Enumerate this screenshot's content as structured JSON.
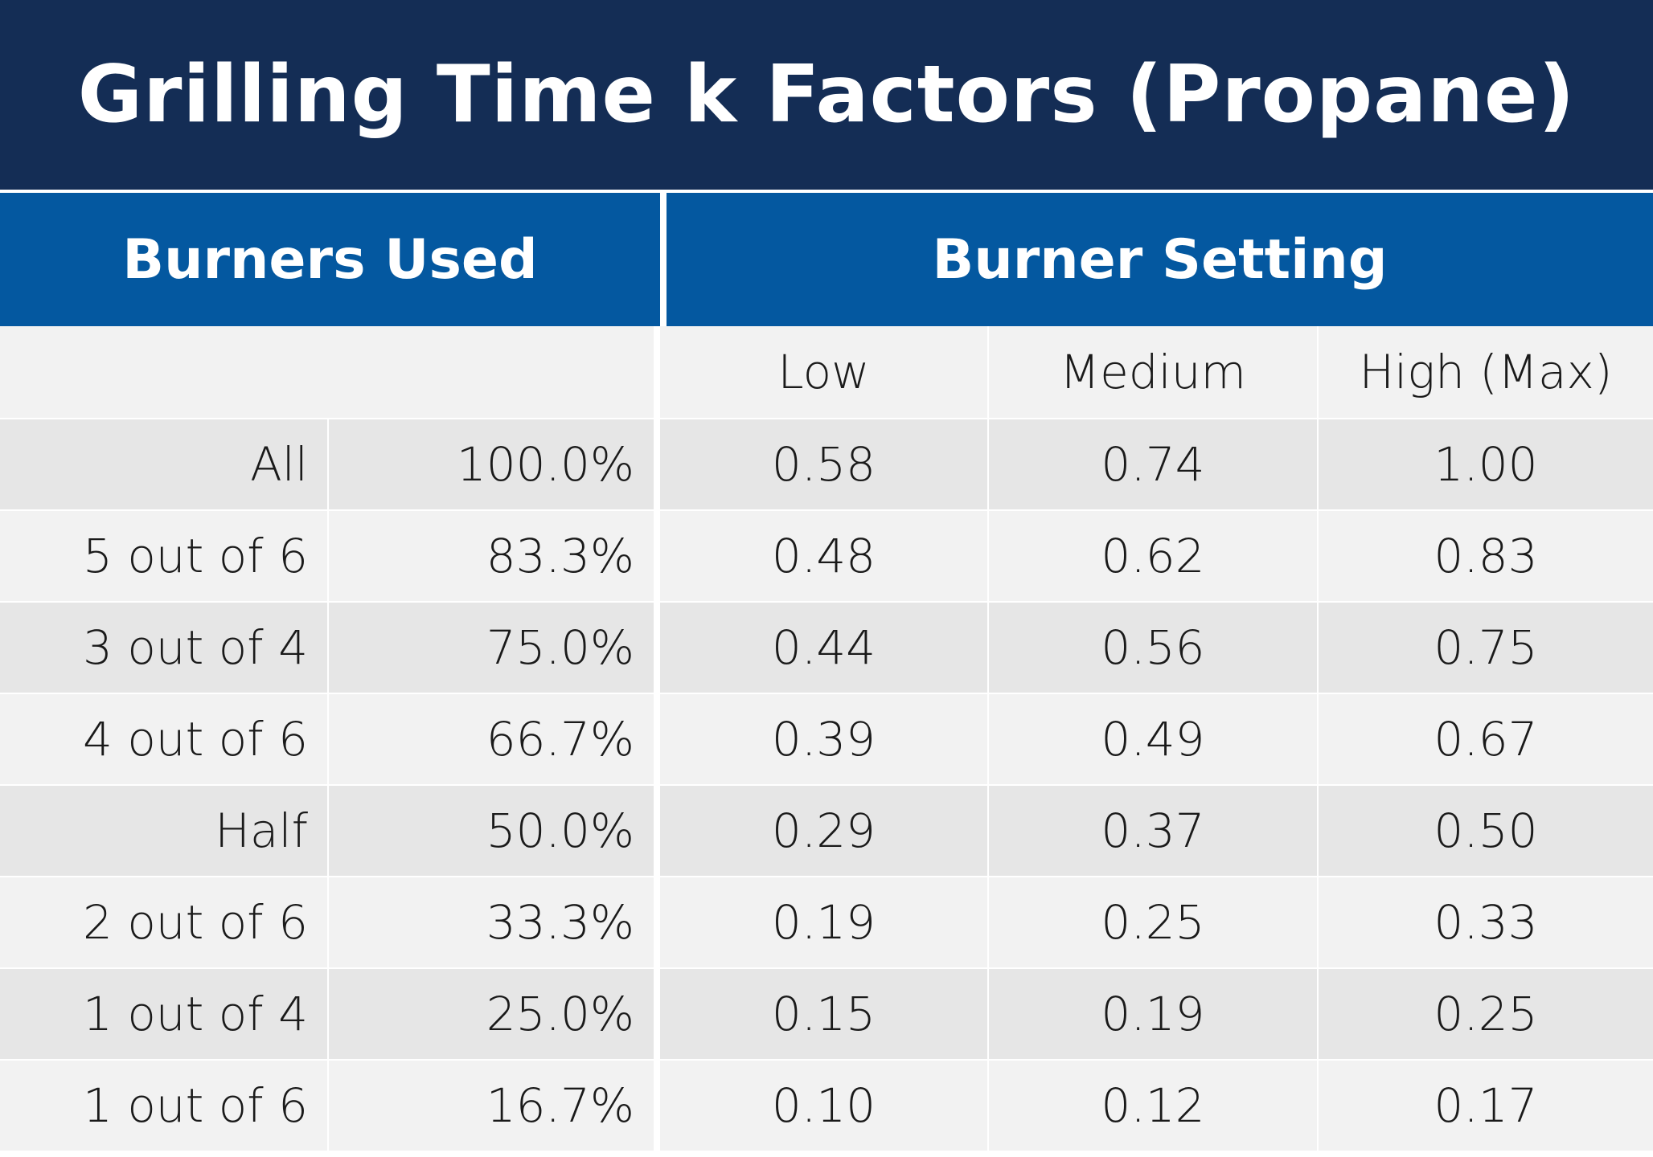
{
  "title": "Grilling Time k Factors (Propane)",
  "headers": {
    "left": "Burners Used",
    "right": "Burner Setting"
  },
  "settings": [
    "Low",
    "Medium",
    "High (Max)"
  ],
  "rows": [
    {
      "label": "All",
      "pct": "100.0%",
      "low": "0.58",
      "medium": "0.74",
      "high": "1.00"
    },
    {
      "label": "5 out of 6",
      "pct": "83.3%",
      "low": "0.48",
      "medium": "0.62",
      "high": "0.83"
    },
    {
      "label": "3 out of 4",
      "pct": "75.0%",
      "low": "0.44",
      "medium": "0.56",
      "high": "0.75"
    },
    {
      "label": "4 out of 6",
      "pct": "66.7%",
      "low": "0.39",
      "medium": "0.49",
      "high": "0.67"
    },
    {
      "label": "Half",
      "pct": "50.0%",
      "low": "0.29",
      "medium": "0.37",
      "high": "0.50"
    },
    {
      "label": "2 out of 6",
      "pct": "33.3%",
      "low": "0.19",
      "medium": "0.25",
      "high": "0.33"
    },
    {
      "label": "1 out of 4",
      "pct": "25.0%",
      "low": "0.15",
      "medium": "0.19",
      "high": "0.25"
    },
    {
      "label": "1 out of 6",
      "pct": "16.7%",
      "low": "0.10",
      "medium": "0.12",
      "high": "0.17"
    }
  ],
  "colors": {
    "title_bg": "#142d55",
    "header_bg": "#0458a0",
    "row_dark": "#e6e6e6",
    "row_light": "#f2f2f2"
  }
}
